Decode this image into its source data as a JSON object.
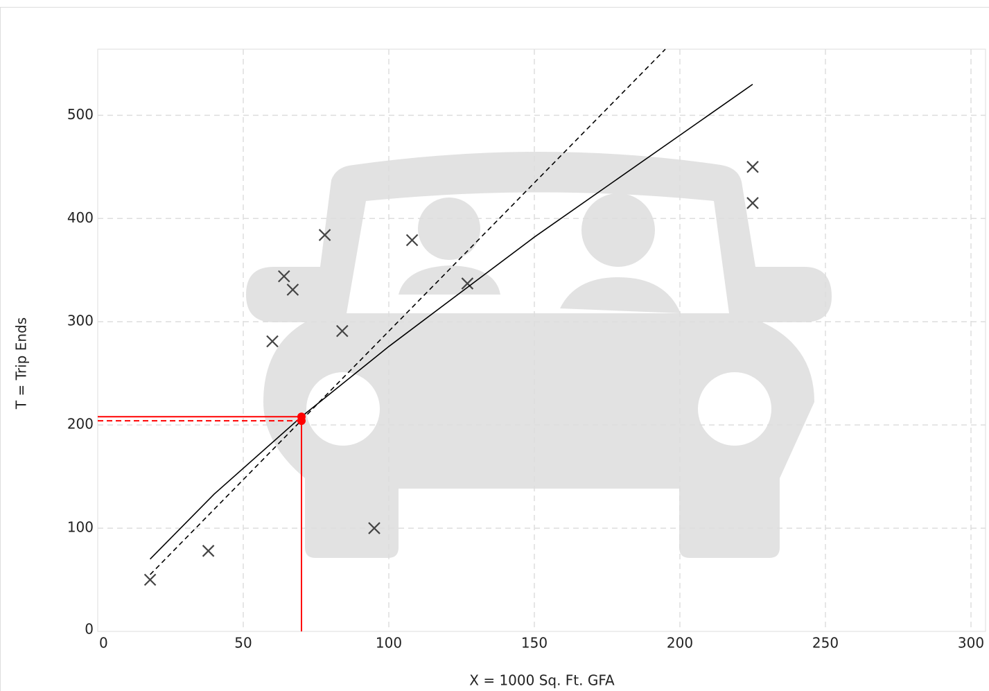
{
  "chart_data": {
    "type": "scatter",
    "x_label": "X = 1000 Sq. Ft. GFA",
    "y_label": "T = Trip Ends",
    "xlim": [
      0,
      305
    ],
    "ylim": [
      0,
      564
    ],
    "xticks": [
      0,
      50,
      100,
      150,
      200,
      250,
      300
    ],
    "yticks": [
      0,
      100,
      200,
      300,
      400,
      500
    ],
    "grid": true,
    "series": [
      {
        "color": "#444444",
        "marker": "x",
        "x": [
          18,
          38,
          60,
          64,
          67,
          78,
          84,
          95,
          108,
          127,
          225,
          225
        ],
        "values": [
          50,
          78,
          281,
          344,
          331,
          384,
          291,
          100,
          379,
          337,
          450,
          415
        ]
      },
      {
        "color": "#000000",
        "marker": "line",
        "dash": false,
        "x": [
          18,
          40,
          70,
          100,
          150,
          225
        ],
        "values": [
          70,
          133,
          208,
          276,
          382,
          530
        ]
      },
      {
        "color": "#000000",
        "marker": "line",
        "dash": true,
        "x": [
          18,
          195
        ],
        "values": [
          55,
          564
        ]
      },
      {
        "color": "#ff0000",
        "marker": "dot",
        "guides": [
          false,
          true
        ],
        "x": [
          70,
          70
        ],
        "values": [
          208,
          204
        ]
      }
    ]
  }
}
